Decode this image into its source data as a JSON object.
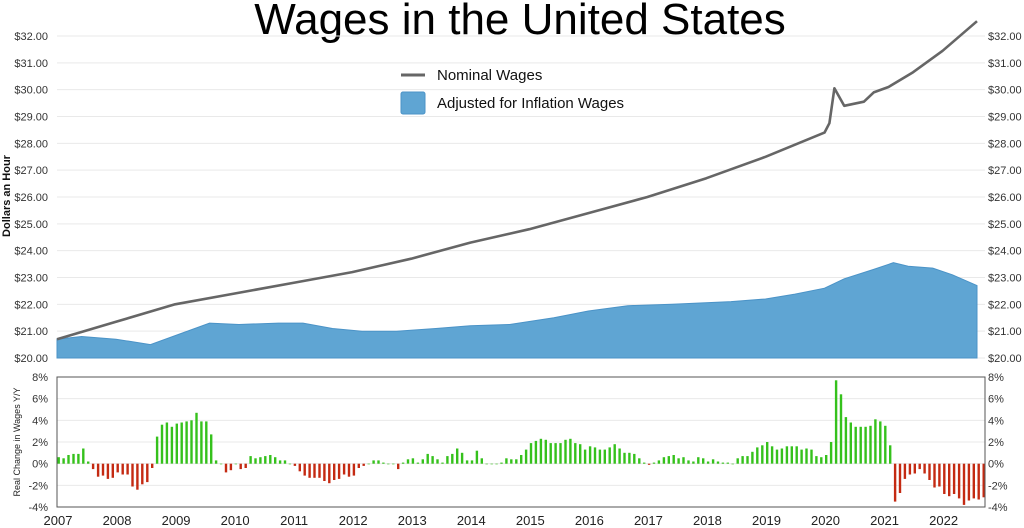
{
  "chart_data": [
    {
      "type": "area",
      "title": "Wages in the United States",
      "ylabel": "Dollars an Hour",
      "ylim": [
        20,
        32
      ],
      "yticks": [
        "$20.00",
        "$21.00",
        "$22.00",
        "$23.00",
        "$24.00",
        "$25.00",
        "$26.00",
        "$27.00",
        "$28.00",
        "$29.00",
        "$30.00",
        "$31.00",
        "$32.00"
      ],
      "grid": true,
      "legend_position": "top-center",
      "series": [
        {
          "name": "Nominal Wages",
          "kind": "line",
          "color": "#666666",
          "points": [
            [
              "2007-01",
              20.7
            ],
            [
              "2008-01",
              21.35
            ],
            [
              "2009-01",
              22.0
            ],
            [
              "2010-01",
              22.4
            ],
            [
              "2011-01",
              22.8
            ],
            [
              "2012-01",
              23.2
            ],
            [
              "2013-01",
              23.7
            ],
            [
              "2014-01",
              24.3
            ],
            [
              "2015-01",
              24.8
            ],
            [
              "2016-01",
              25.4
            ],
            [
              "2017-01",
              26.0
            ],
            [
              "2018-01",
              26.7
            ],
            [
              "2019-01",
              27.5
            ],
            [
              "2020-01",
              28.4
            ],
            [
              "2020-02",
              28.75
            ],
            [
              "2020-03",
              30.05
            ],
            [
              "2020-05",
              29.4
            ],
            [
              "2020-09",
              29.55
            ],
            [
              "2020-11",
              29.9
            ],
            [
              "2021-02",
              30.1
            ],
            [
              "2021-07",
              30.65
            ],
            [
              "2022-01",
              31.45
            ],
            [
              "2022-08",
              32.55
            ]
          ]
        },
        {
          "name": "Adjusted for Inflation Wages",
          "kind": "area",
          "color": "#5fa5d3",
          "points": [
            [
              "2007-01",
              20.7
            ],
            [
              "2007-06",
              20.8
            ],
            [
              "2008-01",
              20.7
            ],
            [
              "2008-08",
              20.5
            ],
            [
              "2009-02",
              20.9
            ],
            [
              "2009-08",
              21.3
            ],
            [
              "2010-02",
              21.25
            ],
            [
              "2010-10",
              21.3
            ],
            [
              "2011-03",
              21.3
            ],
            [
              "2011-09",
              21.1
            ],
            [
              "2012-03",
              21.0
            ],
            [
              "2012-10",
              21.0
            ],
            [
              "2013-06",
              21.1
            ],
            [
              "2014-01",
              21.2
            ],
            [
              "2014-09",
              21.25
            ],
            [
              "2015-06",
              21.5
            ],
            [
              "2016-01",
              21.75
            ],
            [
              "2016-09",
              21.95
            ],
            [
              "2017-06",
              22.0
            ],
            [
              "2018-06",
              22.1
            ],
            [
              "2019-01",
              22.2
            ],
            [
              "2019-07",
              22.38
            ],
            [
              "2020-01",
              22.6
            ],
            [
              "2020-05",
              22.95
            ],
            [
              "2020-11",
              23.3
            ],
            [
              "2021-03",
              23.55
            ],
            [
              "2021-06",
              23.42
            ],
            [
              "2021-11",
              23.35
            ],
            [
              "2022-03",
              23.1
            ],
            [
              "2022-08",
              22.7
            ]
          ]
        }
      ]
    },
    {
      "type": "bar",
      "ylabel": "Real Change in Wages Y/Y",
      "ylim": [
        -4,
        8
      ],
      "yticks": [
        "-4%",
        "-2%",
        "0%",
        "2%",
        "4%",
        "6%",
        "8%"
      ],
      "xticks": [
        "2007",
        "2008",
        "2009",
        "2010",
        "2011",
        "2012",
        "2013",
        "2014",
        "2015",
        "2016",
        "2017",
        "2018",
        "2019",
        "2020",
        "2021",
        "2022"
      ],
      "grid": true,
      "positive_color": "#35c11c",
      "negative_color": "#c42a12",
      "monthly_values_by_year": {
        "2007": [
          0.6,
          0.5,
          0.8,
          0.9,
          0.9,
          1.4,
          0.2,
          -0.5,
          -1.2,
          -1.1,
          -1.4,
          -1.3
        ],
        "2008": [
          -0.8,
          -1.0,
          -1.0,
          -2.1,
          -2.4,
          -1.9,
          -1.7,
          -0.4,
          2.5,
          3.6,
          3.8,
          3.4
        ],
        "2009": [
          3.7,
          3.8,
          3.9,
          4.0,
          4.7,
          3.9,
          3.9,
          2.7,
          0.3,
          0,
          -0.8,
          -0.6
        ],
        "2010": [
          0,
          -0.5,
          -0.4,
          0.7,
          0.5,
          0.6,
          0.7,
          0.8,
          0.6,
          0.3,
          0.3,
          0
        ],
        "2011": [
          -0.2,
          -0.7,
          -1.1,
          -1.3,
          -1.3,
          -1.3,
          -1.6,
          -1.8,
          -1.5,
          -1.4,
          -1.0,
          -1.2
        ],
        "2012": [
          -1.1,
          -0.4,
          -0.2,
          0,
          0.3,
          0.3,
          0.1,
          0,
          0,
          -0.5,
          0.1,
          0.4
        ],
        "2013": [
          0.5,
          0.1,
          0.4,
          0.9,
          0.7,
          0.4,
          0.1,
          0.7,
          0.9,
          1.4,
          1.0,
          0.3
        ],
        "2014": [
          0.3,
          1.2,
          0.5,
          0,
          0,
          0,
          0.1,
          0.5,
          0.4,
          0.4,
          0.8,
          1.3
        ],
        "2015": [
          1.9,
          2.1,
          2.3,
          2.2,
          1.9,
          1.9,
          1.9,
          2.2,
          2.3,
          1.9,
          1.8,
          1.3
        ],
        "2016": [
          1.6,
          1.5,
          1.3,
          1.3,
          1.5,
          1.8,
          1.4,
          1.0,
          1.0,
          0.9,
          0.5,
          0.1
        ],
        "2017": [
          -0.1,
          0.1,
          0.3,
          0.6,
          0.7,
          0.8,
          0.5,
          0.6,
          0.3,
          0.2,
          0.6,
          0.5
        ],
        "2018": [
          0.2,
          0.4,
          0.2,
          0.1,
          0.1,
          0,
          0.5,
          0.7,
          0.7,
          1.1,
          1.5,
          1.7
        ],
        "2019": [
          2.0,
          1.6,
          1.3,
          1.4,
          1.6,
          1.6,
          1.6,
          1.3,
          1.4,
          1.3,
          0.7,
          0.6
        ],
        "2020": [
          0.8,
          2.0,
          7.7,
          6.4,
          4.3,
          3.8,
          3.4,
          3.4,
          3.4,
          3.5,
          4.1,
          3.9
        ],
        "2021": [
          3.5,
          1.7,
          -3.5,
          -2.7,
          -1.4,
          -1.0,
          -0.9,
          -0.5,
          -0.9,
          -1.5,
          -2.2,
          -2.1
        ],
        "2022": [
          -2.8,
          -3.0,
          -2.8,
          -3.2,
          -3.8,
          -3.4,
          -3.2,
          -3.3,
          -3.1
        ]
      }
    }
  ]
}
